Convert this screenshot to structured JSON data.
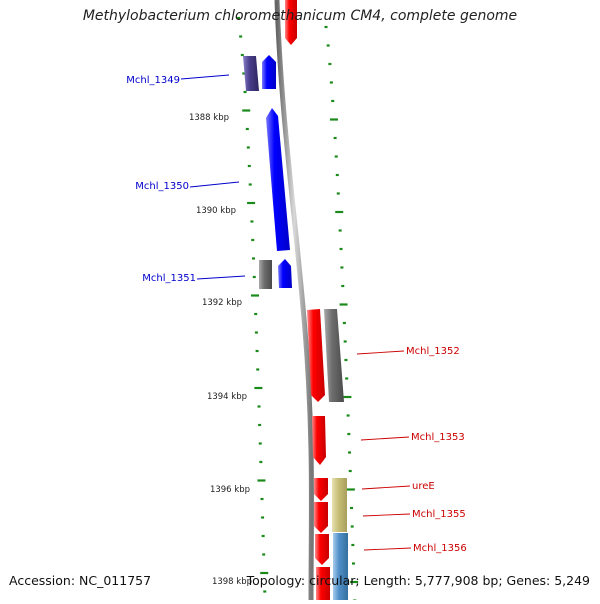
{
  "title": "Methylobacterium chloromethanicum CM4, complete genome",
  "accession_label": "Accession: NC_011757",
  "topology_label": "Topology: circular; Length: 5,777,908 bp; Genes: 5,249",
  "kbp_labels": [
    "1388 kbp",
    "1390 kbp",
    "1392 kbp",
    "1394 kbp",
    "1396 kbp",
    "1398 kbp"
  ],
  "genes": {
    "left": [
      "Mchl_1349",
      "Mchl_1350",
      "Mchl_1351"
    ],
    "right": [
      "Mchl_1352",
      "Mchl_1353",
      "ureE",
      "Mchl_1355",
      "Mchl_1356"
    ]
  },
  "colors": {
    "left_label": "#0000cc",
    "right_label": "#cc0000",
    "blue_gene": "#0000ff",
    "red_gene": "#ff0000",
    "tick": "#1a8a1a",
    "backbone": "#999999",
    "cog_navy": "#4a3f8c",
    "cog_gray": "#6e6e6e",
    "cog_khaki": "#c8c07a",
    "cog_steel": "#4f8fc8"
  }
}
